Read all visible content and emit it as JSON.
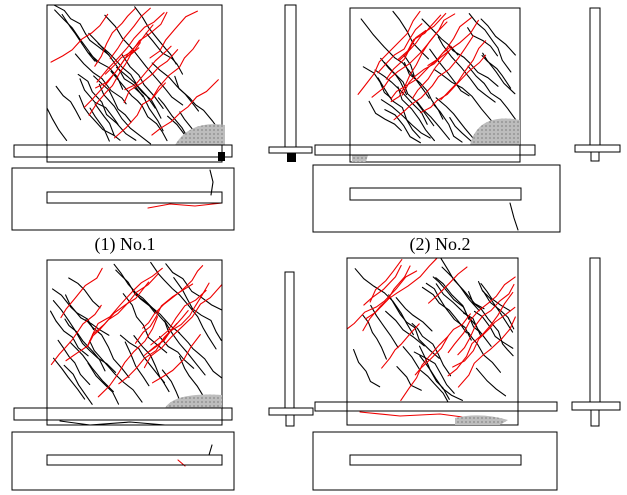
{
  "captions": [
    "(1) No.1",
    "(2) No.2"
  ]
}
